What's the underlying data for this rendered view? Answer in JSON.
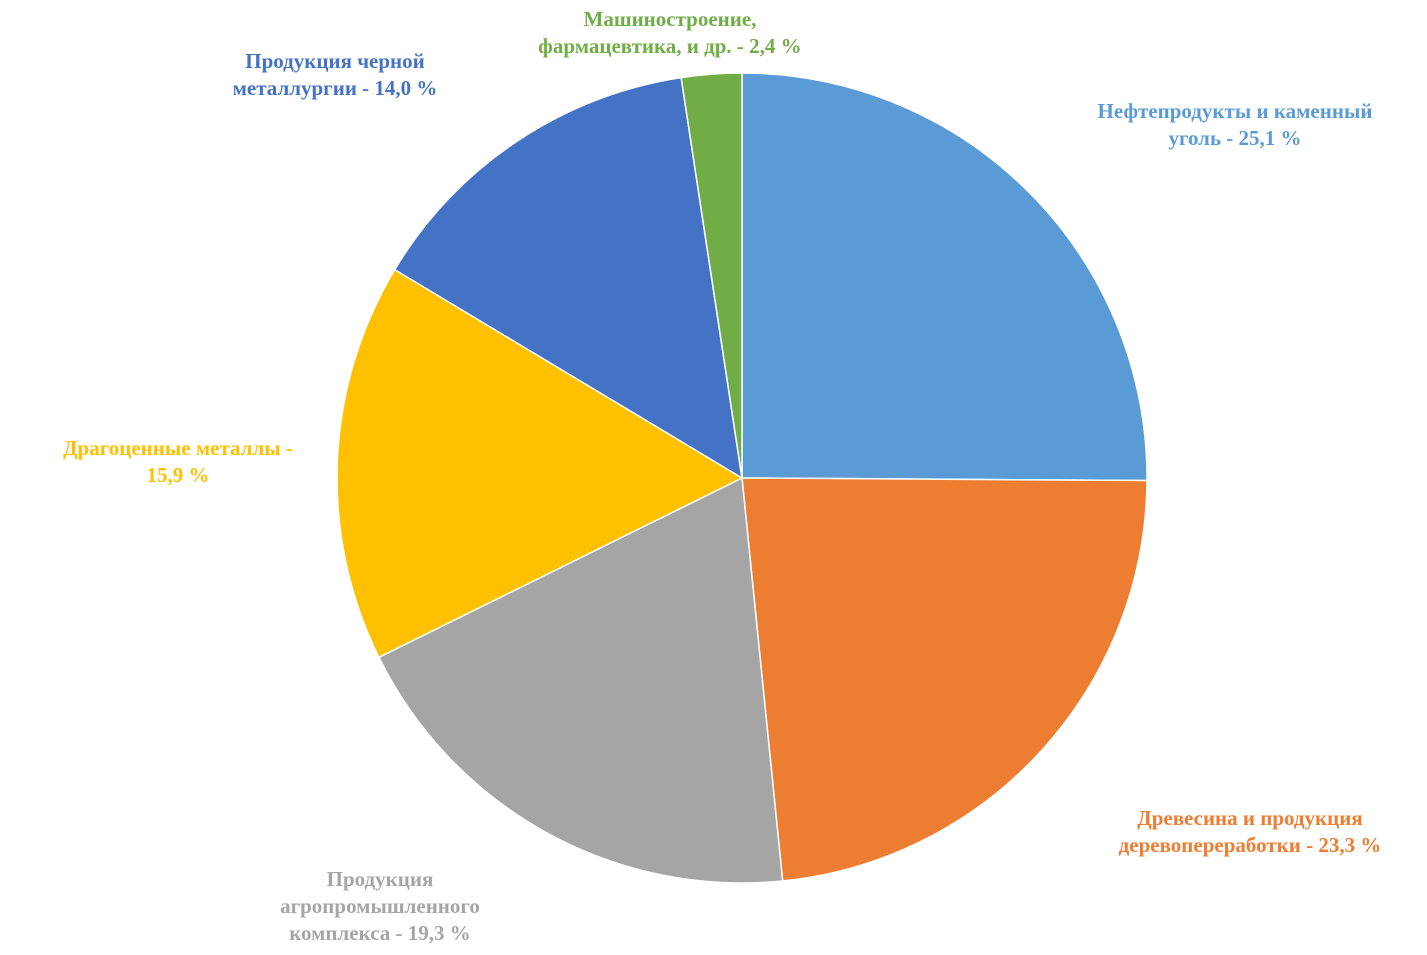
{
  "chart_data": {
    "type": "pie",
    "title": "",
    "start_angle_deg": 90,
    "direction": "clockwise",
    "slices": [
      {
        "label": "Нефтепродукты и каменный\nуголь - 25,1 %",
        "value": 25.1,
        "color": "#5B9BD5"
      },
      {
        "label": "Древесина и продукция\nдеревопереработки - 23,3 %",
        "value": 23.3,
        "color": "#ED7D31"
      },
      {
        "label": "Продукция\nагропромышленного\nкомплекса - 19,3 %",
        "value": 19.3,
        "color": "#A5A5A5"
      },
      {
        "label": "Драгоценные металлы -\n15,9 %",
        "value": 15.9,
        "color": "#FFC000"
      },
      {
        "label": "Продукция черной\nметаллургии - 14,0 %",
        "value": 14.0,
        "color": "#4472C4"
      },
      {
        "label": "Машиностроение,\nфармацевтика, и др. - 2,4 %",
        "value": 2.4,
        "color": "#70AD47"
      }
    ]
  }
}
